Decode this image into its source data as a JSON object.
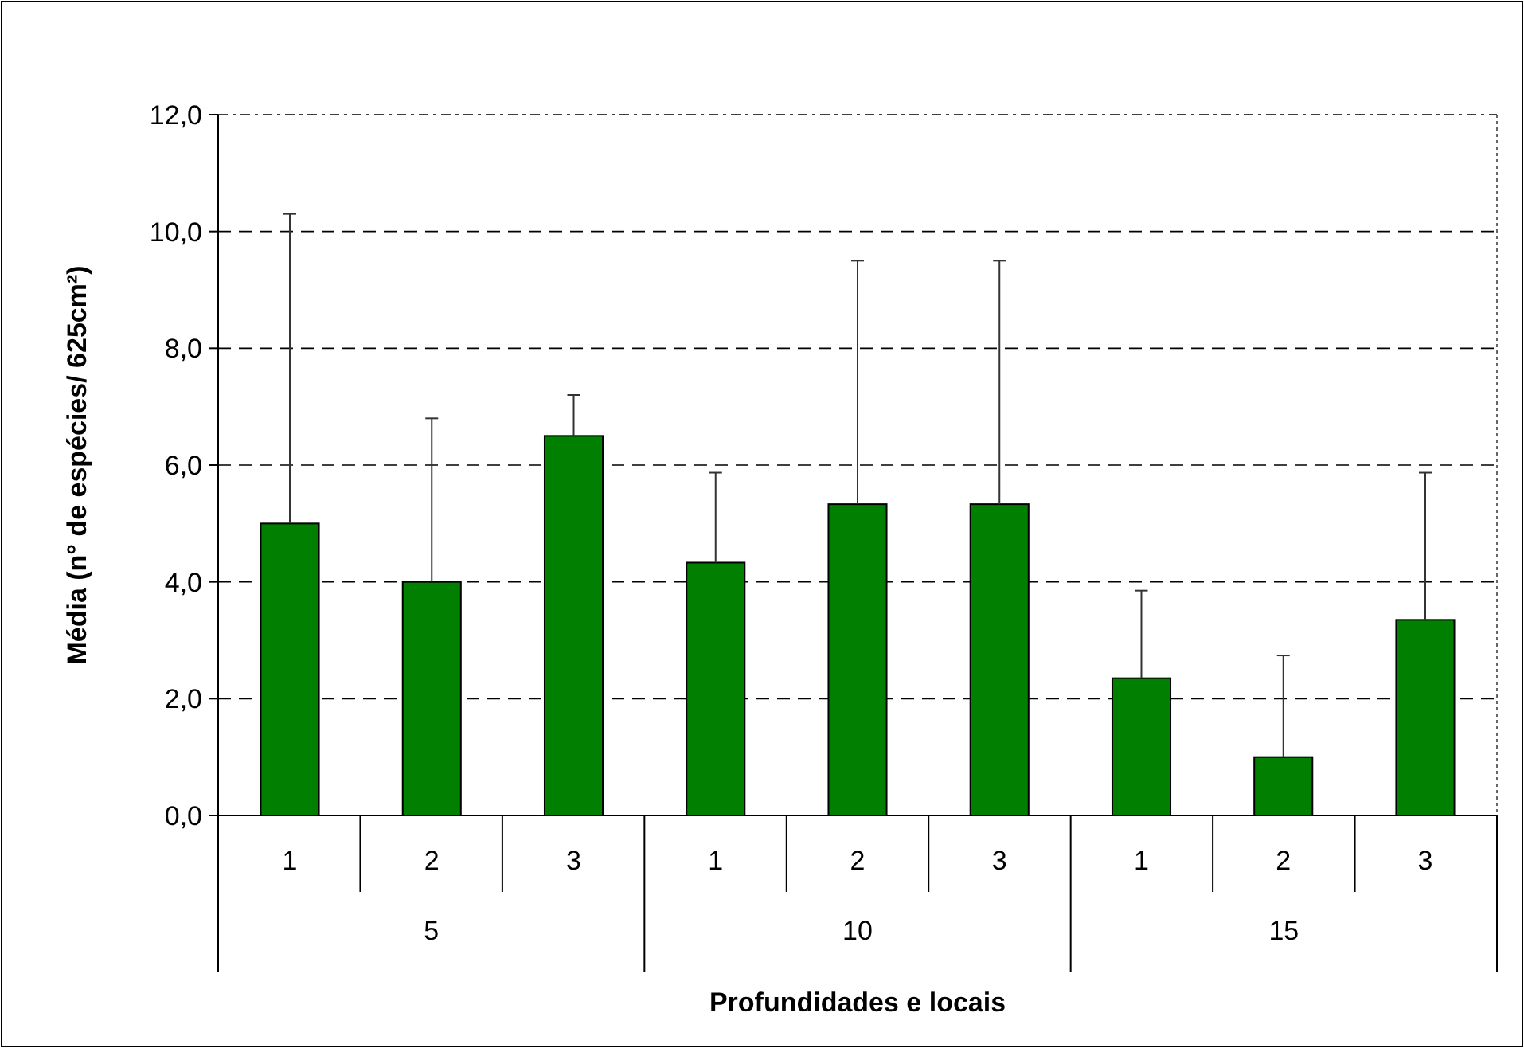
{
  "chart_data": {
    "type": "bar",
    "xlabel": "Profundidades e locais",
    "ylabel": "Média (n° de espécies/ 625cm²)",
    "categories": [
      "1",
      "2",
      "3",
      "1",
      "2",
      "3",
      "1",
      "2",
      "3"
    ],
    "annotations": [
      "5",
      "10",
      "15"
    ],
    "values": [
      5.0,
      4.0,
      6.5,
      4.33,
      5.33,
      5.33,
      2.35,
      1.0,
      3.35
    ],
    "errors": [
      [
        5.0,
        10.3
      ],
      [
        4.0,
        6.8
      ],
      [
        6.5,
        7.2
      ],
      [
        4.33,
        5.87
      ],
      [
        5.33,
        9.5
      ],
      [
        5.33,
        9.5
      ],
      [
        2.35,
        3.85
      ],
      [
        1.0,
        2.74
      ],
      [
        3.35,
        5.87
      ]
    ],
    "color": "#007f00",
    "ylim": [
      0,
      12
    ],
    "yticks": [
      {
        "value": 0,
        "label": "0,0"
      },
      {
        "value": 2,
        "label": "2,0"
      },
      {
        "value": 4,
        "label": "4,0"
      },
      {
        "value": 6,
        "label": "6,0"
      },
      {
        "value": 8,
        "label": "8,0"
      },
      {
        "value": 10,
        "label": "10,0"
      },
      {
        "value": 12,
        "label": "12,0"
      }
    ],
    "grid": "y"
  }
}
